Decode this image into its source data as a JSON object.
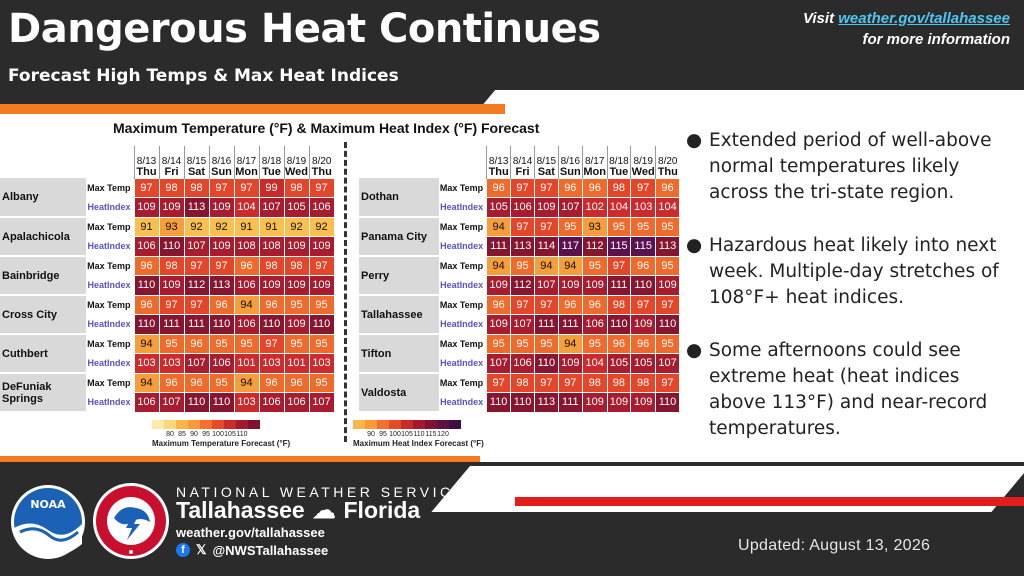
{
  "header": {
    "title": "Dangerous Heat Continues",
    "subtitle": "Forecast High Temps & Max Heat Indices",
    "visit_prefix": "Visit ",
    "visit_link": "weather.gov/tallahassee",
    "visit_suffix": "for more information"
  },
  "forecast_panel": {
    "title": "Maximum Temperature (°F) & Maximum Heat Index (°F) Forecast",
    "dates": [
      "8/13",
      "8/14",
      "8/15",
      "8/16",
      "8/17",
      "8/18",
      "8/19",
      "8/20"
    ],
    "days": [
      "Thu",
      "Fri",
      "Sat",
      "Sun",
      "Mon",
      "Tue",
      "Wed",
      "Thu"
    ],
    "max_label": "Max Temp",
    "hi_label": "HeatIndex",
    "left_cities": [
      {
        "name": "Albany",
        "max": [
          97,
          98,
          98,
          97,
          97,
          99,
          98,
          97
        ],
        "hi": [
          109,
          109,
          113,
          109,
          104,
          107,
          105,
          106
        ]
      },
      {
        "name": "Apalachicola",
        "max": [
          91,
          93,
          92,
          92,
          91,
          91,
          92,
          92
        ],
        "hi": [
          106,
          110,
          107,
          109,
          108,
          108,
          109,
          109
        ]
      },
      {
        "name": "Bainbridge",
        "max": [
          96,
          98,
          97,
          97,
          96,
          98,
          98,
          97
        ],
        "hi": [
          110,
          109,
          112,
          113,
          106,
          109,
          109,
          109
        ]
      },
      {
        "name": "Cross City",
        "max": [
          96,
          97,
          97,
          96,
          94,
          96,
          95,
          95
        ],
        "hi": [
          110,
          111,
          111,
          110,
          106,
          110,
          109,
          110
        ]
      },
      {
        "name": "Cuthbert",
        "max": [
          94,
          95,
          96,
          95,
          95,
          97,
          95,
          95
        ],
        "hi": [
          103,
          103,
          107,
          106,
          101,
          103,
          101,
          103
        ]
      },
      {
        "name": "DeFuniak Springs",
        "max": [
          94,
          96,
          96,
          95,
          94,
          96,
          96,
          95
        ],
        "hi": [
          106,
          107,
          110,
          110,
          103,
          106,
          106,
          107
        ]
      }
    ],
    "right_cities": [
      {
        "name": "Dothan",
        "max": [
          96,
          97,
          97,
          96,
          96,
          98,
          97,
          96
        ],
        "hi": [
          105,
          106,
          109,
          107,
          102,
          104,
          103,
          104
        ]
      },
      {
        "name": "Panama City",
        "max": [
          94,
          97,
          97,
          95,
          93,
          95,
          95,
          95
        ],
        "hi": [
          111,
          113,
          114,
          117,
          112,
          115,
          115,
          113
        ]
      },
      {
        "name": "Perry",
        "max": [
          94,
          95,
          94,
          94,
          95,
          97,
          96,
          95
        ],
        "hi": [
          109,
          112,
          107,
          109,
          109,
          111,
          110,
          109
        ]
      },
      {
        "name": "Tallahassee",
        "max": [
          96,
          97,
          97,
          96,
          96,
          98,
          97,
          97
        ],
        "hi": [
          109,
          107,
          111,
          111,
          106,
          110,
          109,
          110
        ]
      },
      {
        "name": "Tifton",
        "max": [
          95,
          95,
          95,
          94,
          95,
          96,
          96,
          95
        ],
        "hi": [
          107,
          106,
          110,
          109,
          104,
          105,
          105,
          107
        ]
      },
      {
        "name": "Valdosta",
        "max": [
          97,
          98,
          97,
          97,
          98,
          98,
          98,
          97
        ],
        "hi": [
          110,
          110,
          113,
          111,
          109,
          109,
          109,
          110
        ]
      }
    ],
    "legend_temp": {
      "ticks": [
        "",
        "80",
        "85",
        "90",
        "95",
        "100",
        "105",
        "110",
        "",
        ""
      ],
      "colors": [
        "#fde9a9",
        "#fdd67a",
        "#fbb448",
        "#f89a3a",
        "#f4702c",
        "#e84a26",
        "#c92a2a",
        "#a5192d",
        "#7f1230"
      ],
      "title": "Maximum Temperature Forecast (°F)"
    },
    "legend_hi": {
      "ticks": [
        "",
        "90",
        "95",
        "100",
        "105",
        "110",
        "115",
        "120",
        ""
      ],
      "colors": [
        "#fbb448",
        "#f89a3a",
        "#f4702c",
        "#e84a26",
        "#c92a2a",
        "#a5192d",
        "#7f1230",
        "#5a1344",
        "#3d0f45"
      ],
      "title": "Maximum Heat Index Forecast (°F)"
    }
  },
  "bullets": [
    "Extended period of well-above normal temperatures likely across the tri-state region.",
    "Hazardous heat likely into next week. Multiple-day stretches of 108°F+ heat indices.",
    "Some afternoons could see extreme heat (heat indices above 113°F) and near-record temperatures."
  ],
  "footer": {
    "agency": "NATIONAL WEATHER SERVICE",
    "office_city": "Tallahassee",
    "office_state": "Florida",
    "website": "weather.gov/tallahassee",
    "handle": "@NWSTallahassee",
    "updated": "Updated:  August 13, 2026",
    "noaa_text": "NOAA",
    "nws_seal_text": "NATIONAL WEATHER SERVICE"
  },
  "colors": {
    "header_bg": "#2b2b2b",
    "accent_orange": "#f47b20",
    "accent_red": "#e11d1d",
    "link_blue": "#4fc6f2"
  }
}
